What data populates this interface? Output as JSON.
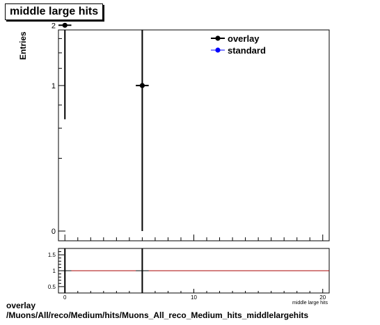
{
  "chart_data": [
    {
      "type": "scatter",
      "title": "middle large hits",
      "ylabel": "Entries",
      "xlabel": "middle large hits",
      "xlim": [
        -0.5,
        20.5
      ],
      "ylim": [
        -0.1,
        2.1
      ],
      "yscale": "sqrt",
      "y_ticks": [
        "0",
        "1",
        "2"
      ],
      "legend": "top-right",
      "series": [
        {
          "name": "overlay",
          "color": "#000000",
          "points": [
            {
              "x": 0,
              "y": 2,
              "xerr": 0.5,
              "ylow": 0.59,
              "yhigh": 3.41
            },
            {
              "x": 6,
              "y": 1,
              "xerr": 0.5,
              "ylow": 0.0,
              "yhigh": 2.0
            }
          ]
        },
        {
          "name": "standard",
          "color": "#0000ff",
          "points": []
        }
      ]
    },
    {
      "type": "scatter",
      "title": "",
      "xlim": [
        -0.5,
        20.5
      ],
      "ylim": [
        0.3,
        1.7
      ],
      "x_ticks": [
        "0",
        "10",
        "20"
      ],
      "y_ticks": [
        "0.5",
        "1",
        "1.5"
      ],
      "reference_line": {
        "y": 1,
        "color": "#aa0000"
      },
      "series": [
        {
          "name": "",
          "color": "#000000",
          "points": [
            {
              "x": 0,
              "y": 1,
              "xerr": 0.5
            },
            {
              "x": 6,
              "y": 1,
              "xerr": 0.5
            }
          ]
        }
      ]
    }
  ],
  "footer": {
    "line1": "overlay",
    "line2": "/Muons/All/reco/Medium/hits/Muons_All_reco_Medium_hits_middlelargehits"
  }
}
